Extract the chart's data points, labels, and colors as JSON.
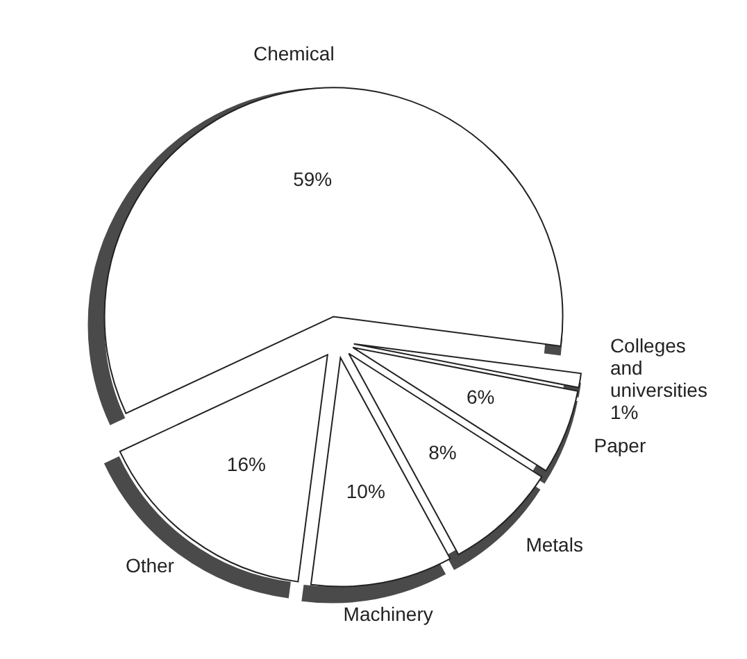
{
  "chart_data": {
    "type": "pie",
    "categories": [
      "Chemical",
      "Colleges and universities",
      "Paper",
      "Metals",
      "Machinery",
      "Other"
    ],
    "values": [
      59,
      1,
      6,
      8,
      10,
      16
    ],
    "colors": [
      "#ffffff",
      "#ffffff",
      "#ffffff",
      "#ffffff",
      "#ffffff",
      "#ffffff"
    ],
    "value_labels": [
      "59%",
      "1%",
      "6%",
      "8%",
      "10%",
      "16%"
    ]
  }
}
